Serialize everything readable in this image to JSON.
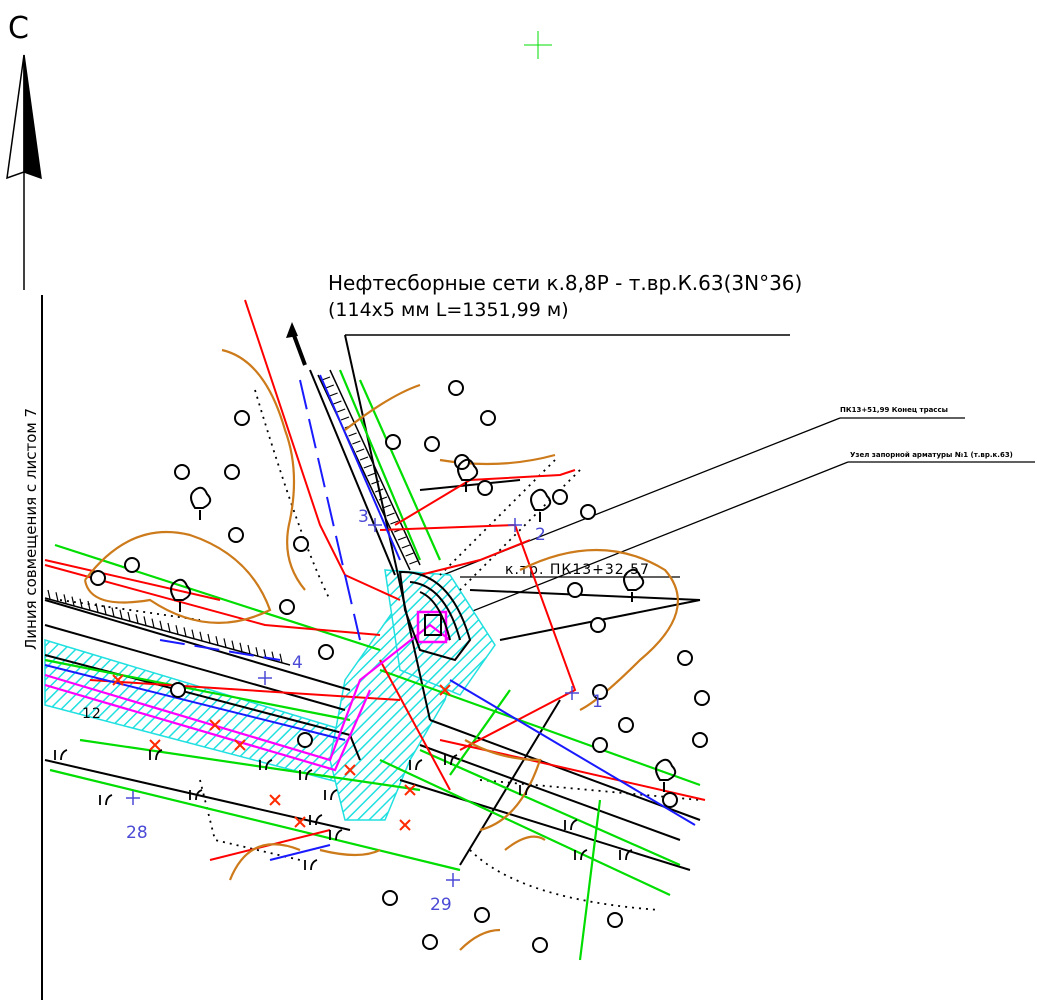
{
  "north_label": "С",
  "sheet_note": "Линия совмещения с листом 7",
  "title_line1": "Нефтесборные сети к.8,8Р - т.вр.К.63(3N°36)",
  "title_line2": "(114x5 мм L=1351,99 м)",
  "callout_end": "ПК13+51,99 Конец трассы",
  "callout_node": "Узел запорной арматуры №1 (т.вр.к.63)",
  "kmp_label": "к.тр. ПК13+32,57",
  "markers": {
    "p1": "1",
    "p2": "2",
    "p3": "3",
    "p4": "4",
    "p28": "28",
    "p29": "29",
    "label_12": "12"
  },
  "colors": {
    "pipeline": "#ff0000",
    "road": "#00dd00",
    "contour": "#cc7a1a",
    "cable": "#1a1aff",
    "hatch": "#20e0e0",
    "magenta": "#ff00ff"
  }
}
